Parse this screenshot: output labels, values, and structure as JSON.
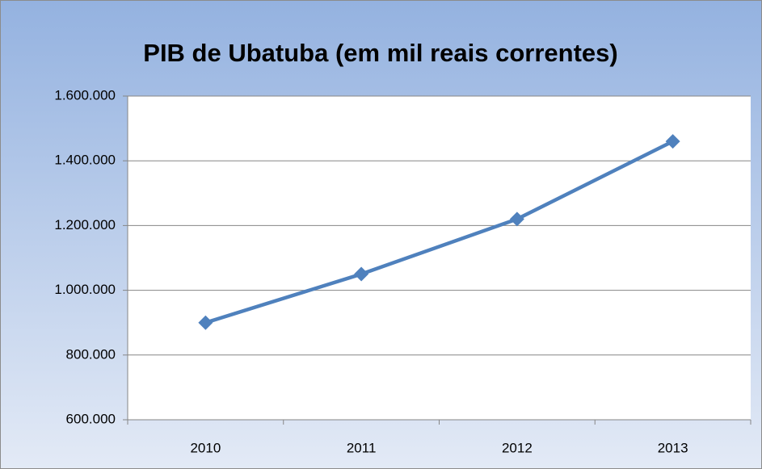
{
  "chart_data": {
    "type": "line",
    "title": "PIB de Ubatuba (em mil reais correntes)",
    "categories": [
      "2010",
      "2011",
      "2012",
      "2013"
    ],
    "series": [
      {
        "name": "PIB",
        "color": "#4f81bd",
        "values": [
          900000,
          1050000,
          1220000,
          1460000
        ]
      }
    ],
    "ylim": [
      600000,
      1600000
    ],
    "yticks": [
      {
        "value": 600000,
        "label": "600.000"
      },
      {
        "value": 800000,
        "label": "800.000"
      },
      {
        "value": 1000000,
        "label": "1.000.000"
      },
      {
        "value": 1200000,
        "label": "1.200.000"
      },
      {
        "value": 1400000,
        "label": "1.400.000"
      },
      {
        "value": 1600000,
        "label": "1.600.000"
      }
    ],
    "grid": true,
    "legend": false
  }
}
